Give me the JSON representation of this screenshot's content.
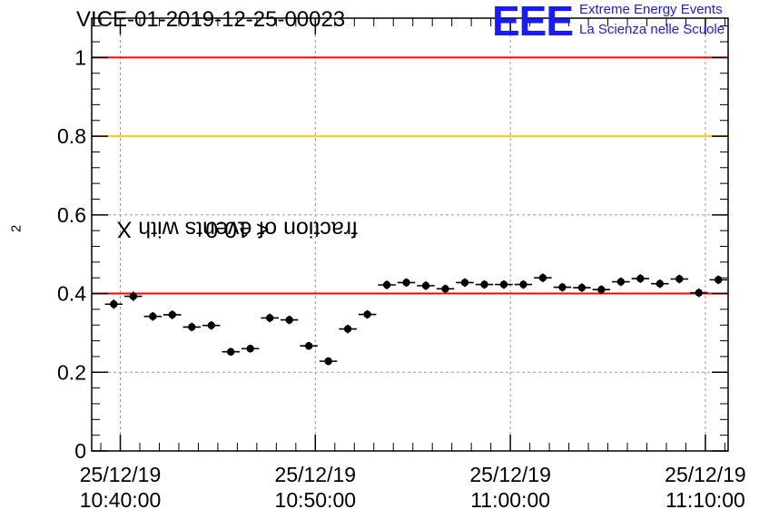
{
  "title": "VICE-01-2019-12-25-00023",
  "logo": {
    "mark": "EEE",
    "line1": "Extreme Energy Events",
    "line2": "La Scienza nelle Scuole",
    "color": "#1a1aff"
  },
  "chart_data": {
    "type": "scatter",
    "title": "VICE-01-2019-12-25-00023",
    "xlabel": "",
    "ylabel_prefix": "fraction of events with X",
    "ylabel_sup": "2",
    "ylabel_suffix": " < 10.0",
    "ylim": [
      0,
      1.1
    ],
    "yticks": [
      0,
      0.2,
      0.4,
      0.6,
      0.8,
      1
    ],
    "ytick_labels": [
      "0",
      "0.2",
      "0.4",
      "0.6",
      "0.8",
      "1"
    ],
    "xlim_seconds_from_10_40_00": [
      -88,
      1870
    ],
    "xticks": [
      {
        "t": 0,
        "date": "25/12/19",
        "time": "10:40:00"
      },
      {
        "t": 600,
        "date": "25/12/19",
        "time": "10:50:00"
      },
      {
        "t": 1200,
        "date": "25/12/19",
        "time": "11:00:00"
      },
      {
        "t": 1800,
        "date": "25/12/19",
        "time": "11:10:00"
      }
    ],
    "grid": true,
    "reference_lines": [
      {
        "y": 1.0,
        "color": "#ff0000"
      },
      {
        "y": 0.8,
        "color": "#ffcc00"
      },
      {
        "y": 0.4,
        "color": "#ff0000"
      }
    ],
    "bin_width_seconds": 60,
    "series": [
      {
        "marker_color": "#000000",
        "x": [
          "10:39:40",
          "10:40:40",
          "10:41:40",
          "10:42:40",
          "10:43:40",
          "10:44:40",
          "10:45:40",
          "10:46:40",
          "10:47:40",
          "10:48:40",
          "10:49:40",
          "10:50:40",
          "10:51:40",
          "10:52:40",
          "10:53:40",
          "10:54:40",
          "10:55:40",
          "10:56:40",
          "10:57:40",
          "10:58:40",
          "10:59:40",
          "11:00:40",
          "11:01:40",
          "11:02:40",
          "11:03:40",
          "11:04:40",
          "11:05:40",
          "11:06:40",
          "11:07:40",
          "11:08:40",
          "11:09:40",
          "11:10:40"
        ],
        "x_seconds": [
          -20,
          40,
          100,
          160,
          220,
          280,
          340,
          400,
          460,
          520,
          580,
          640,
          700,
          760,
          820,
          880,
          940,
          1000,
          1060,
          1120,
          1180,
          1240,
          1300,
          1360,
          1420,
          1480,
          1540,
          1600,
          1660,
          1720,
          1780,
          1840
        ],
        "y": [
          0.373,
          0.393,
          0.342,
          0.346,
          0.315,
          0.319,
          0.252,
          0.26,
          0.338,
          0.333,
          0.267,
          0.228,
          0.31,
          0.347,
          0.422,
          0.428,
          0.42,
          0.412,
          0.428,
          0.423,
          0.423,
          0.423,
          0.44,
          0.416,
          0.415,
          0.41,
          0.43,
          0.438,
          0.425,
          0.437,
          0.402,
          0.435
        ],
        "err": [
          0.012,
          0.012,
          0.011,
          0.011,
          0.011,
          0.011,
          0.01,
          0.01,
          0.011,
          0.011,
          0.01,
          0.01,
          0.011,
          0.011,
          0.011,
          0.011,
          0.011,
          0.011,
          0.011,
          0.011,
          0.011,
          0.011,
          0.011,
          0.011,
          0.011,
          0.011,
          0.011,
          0.011,
          0.011,
          0.011,
          0.011,
          0.011
        ]
      }
    ]
  }
}
